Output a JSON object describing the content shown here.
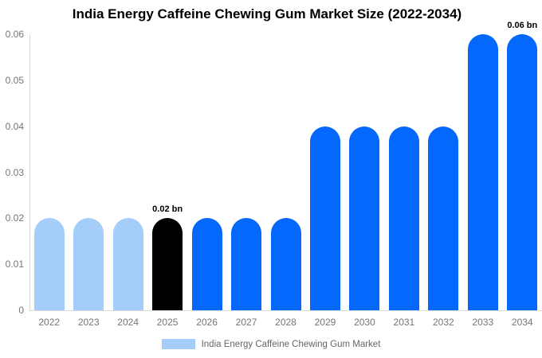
{
  "title": "India Energy Caffeine Chewing Gum Market Size (2022-2034)",
  "chart_data": {
    "type": "bar",
    "title": "India Energy Caffeine Chewing Gum Market Size (2022-2034)",
    "unit": "bn",
    "categories": [
      "2022",
      "2023",
      "2024",
      "2025",
      "2026",
      "2027",
      "2028",
      "2029",
      "2030",
      "2031",
      "2032",
      "2033",
      "2034"
    ],
    "values": [
      0.02,
      0.02,
      0.02,
      0.02,
      0.02,
      0.02,
      0.02,
      0.04,
      0.04,
      0.04,
      0.04,
      0.06,
      0.06
    ],
    "bar_colors": [
      "#a4cdf9",
      "#a4cdf9",
      "#a4cdf9",
      "#000000",
      "#0568fc",
      "#0568fc",
      "#0568fc",
      "#0568fc",
      "#0568fc",
      "#0568fc",
      "#0568fc",
      "#0568fc",
      "#0568fc"
    ],
    "ylim": [
      0,
      0.06
    ],
    "yticks": [
      0,
      0.01,
      0.02,
      0.03,
      0.04,
      0.05,
      0.06
    ],
    "ytick_labels": [
      "0",
      "0.01",
      "0.02",
      "0.03",
      "0.04",
      "0.05",
      "0.06"
    ],
    "xlabel": "",
    "ylabel": "",
    "grid": false,
    "legend": {
      "label": "India Energy Caffeine Chewing Gum Market",
      "swatch_color": "#a4cdf9",
      "position": "bottom"
    },
    "annotations": [
      {
        "text": "0.02 bn",
        "category": "2025"
      },
      {
        "text": "0.06 bn",
        "category": "2034"
      }
    ]
  },
  "colors": {
    "bar_light_blue": "#a4cdf9",
    "bar_black": "#000000",
    "bar_bright_blue": "#0568fc",
    "axis_line": "#d9d9d9",
    "tick_text": "#757575",
    "legend_text": "#666666",
    "title_text": "#000000",
    "annotation_text": "#000000",
    "background": "#ffffff"
  }
}
